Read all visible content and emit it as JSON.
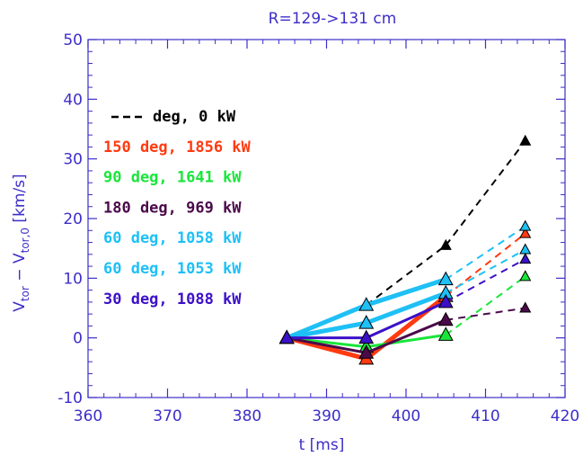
{
  "chart_data": {
    "type": "line",
    "title": "R=129->131 cm",
    "xlabel": "t   [ms]",
    "ylabel": {
      "main": "V",
      "sub1": "tor",
      "mid": " − V",
      "sub2": "tor,0",
      "end": " [km/s]"
    },
    "xlim": [
      360,
      420
    ],
    "ylim": [
      -10,
      50
    ],
    "xticks": [
      360,
      370,
      380,
      390,
      400,
      410,
      420
    ],
    "yticks": [
      -10,
      0,
      10,
      20,
      30,
      40,
      50
    ],
    "grid": false,
    "legend_position": "upper-left",
    "axis_color": "#3c2ec9",
    "series": [
      {
        "name": "deg, 0 kW",
        "color": "#000000",
        "x": [
          385,
          395,
          405,
          415
        ],
        "y": [
          0,
          5.5,
          15.5,
          33
        ],
        "solid_until": 0,
        "solid_width": 3
      },
      {
        "name": "150 deg, 1856 kW",
        "color": "#ff3a10",
        "x": [
          385,
          395,
          405,
          415
        ],
        "y": [
          0,
          -3.5,
          7,
          17.5
        ],
        "solid_until": 2,
        "solid_width": 5
      },
      {
        "name": "90 deg, 1641 kW",
        "color": "#19e63a",
        "x": [
          385,
          395,
          405,
          415
        ],
        "y": [
          0,
          -1.5,
          0.5,
          10.3
        ],
        "solid_until": 2,
        "solid_width": 3
      },
      {
        "name": "180 deg, 969 kW",
        "color": "#4a0a4a",
        "x": [
          385,
          395,
          405,
          415
        ],
        "y": [
          0,
          -2.5,
          3,
          5
        ],
        "solid_until": 2,
        "solid_width": 3
      },
      {
        "name": "60 deg, 1058 kW",
        "color": "#1ec0f5",
        "x": [
          385,
          395,
          405,
          415
        ],
        "y": [
          0,
          5.5,
          9.8,
          18.7
        ],
        "solid_until": 2,
        "solid_width": 5
      },
      {
        "name": "60 deg, 1053 kW",
        "color": "#1ec0f5",
        "x": [
          385,
          395,
          405,
          415
        ],
        "y": [
          0,
          2.5,
          7.5,
          14.8
        ],
        "solid_until": 2,
        "solid_width": 5
      },
      {
        "name": "30 deg, 1088 kW",
        "color": "#3c10c8",
        "x": [
          385,
          395,
          405,
          415
        ],
        "y": [
          0,
          0,
          6,
          13.2
        ],
        "solid_until": 2,
        "solid_width": 3
      }
    ]
  }
}
